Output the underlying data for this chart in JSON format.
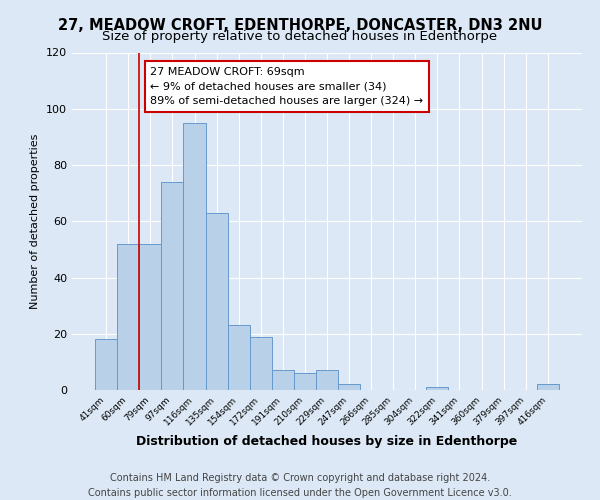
{
  "title_line1": "27, MEADOW CROFT, EDENTHORPE, DONCASTER, DN3 2NU",
  "title_line2": "Size of property relative to detached houses in Edenthorpe",
  "xlabel": "Distribution of detached houses by size in Edenthorpe",
  "ylabel": "Number of detached properties",
  "bin_labels": [
    "41sqm",
    "60sqm",
    "79sqm",
    "97sqm",
    "116sqm",
    "135sqm",
    "154sqm",
    "172sqm",
    "191sqm",
    "210sqm",
    "229sqm",
    "247sqm",
    "266sqm",
    "285sqm",
    "304sqm",
    "322sqm",
    "341sqm",
    "360sqm",
    "379sqm",
    "397sqm",
    "416sqm"
  ],
  "bar_heights": [
    18,
    52,
    52,
    74,
    95,
    63,
    23,
    19,
    7,
    6,
    7,
    2,
    0,
    0,
    0,
    1,
    0,
    0,
    0,
    0,
    2
  ],
  "bar_color": "#b8d0e8",
  "bar_edge_color": "#6699cc",
  "background_color": "#dce8f5",
  "grid_color": "#ffffff",
  "vline_x": 1.5,
  "vline_color": "#cc0000",
  "annotation_text": "27 MEADOW CROFT: 69sqm\n← 9% of detached houses are smaller (34)\n89% of semi-detached houses are larger (324) →",
  "annotation_box_color": "#ffffff",
  "annotation_box_edge_color": "#cc0000",
  "ylim": [
    0,
    120
  ],
  "yticks": [
    0,
    20,
    40,
    60,
    80,
    100,
    120
  ],
  "footer_text": "Contains HM Land Registry data © Crown copyright and database right 2024.\nContains public sector information licensed under the Open Government Licence v3.0.",
  "title_fontsize": 10.5,
  "subtitle_fontsize": 9.5,
  "annotation_fontsize": 8,
  "footer_fontsize": 7,
  "ylabel_fontsize": 8,
  "xlabel_fontsize": 9
}
